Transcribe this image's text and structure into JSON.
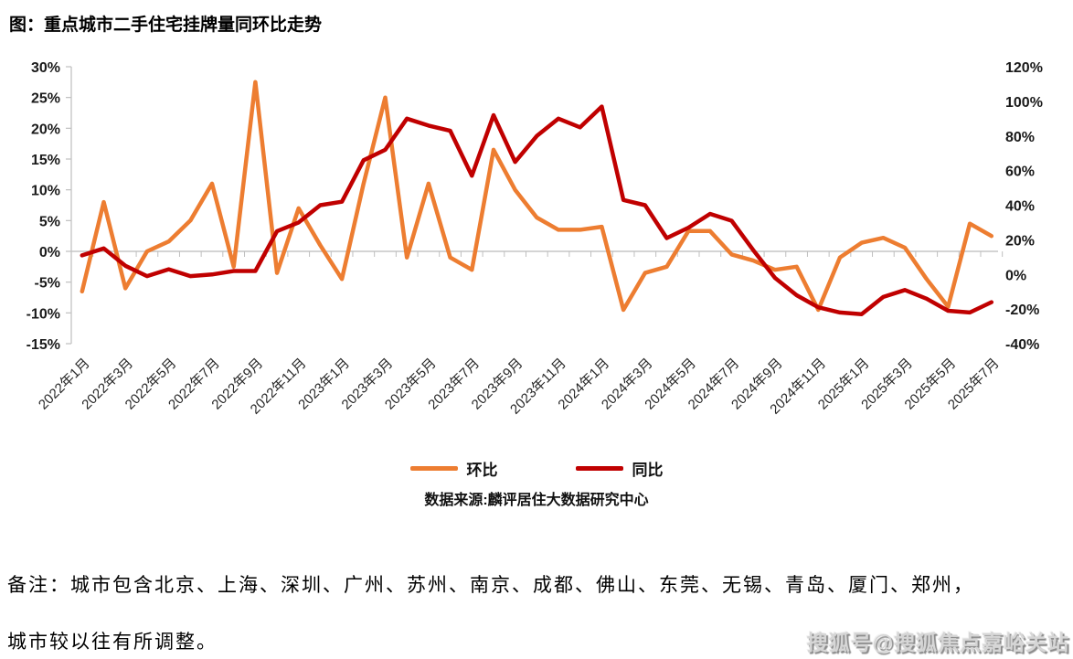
{
  "title": "图：重点城市二手住宅挂牌量同环比走势",
  "chart_data": {
    "type": "line",
    "x": [
      "2022年1月",
      "2022年2月",
      "2022年3月",
      "2022年4月",
      "2022年5月",
      "2022年6月",
      "2022年7月",
      "2022年8月",
      "2022年9月",
      "2022年10月",
      "2022年11月",
      "2022年12月",
      "2023年1月",
      "2023年2月",
      "2023年3月",
      "2023年4月",
      "2023年5月",
      "2023年6月",
      "2023年7月",
      "2023年8月",
      "2023年9月",
      "2023年10月",
      "2023年11月",
      "2023年12月",
      "2024年1月",
      "2024年2月",
      "2024年3月",
      "2024年4月",
      "2024年5月",
      "2024年6月",
      "2024年7月",
      "2024年8月",
      "2024年9月",
      "2024年10月",
      "2024年11月",
      "2024年12月",
      "2025年1月",
      "2025年2月",
      "2025年3月",
      "2025年4月",
      "2025年5月",
      "2025年6月",
      "2025年7月"
    ],
    "x_tick_every": 2,
    "series": [
      {
        "name": "环比",
        "axis": "left",
        "color": "#ED7D31",
        "values": [
          -6.5,
          8,
          -6,
          0,
          1.6,
          5,
          11,
          -2.5,
          27.5,
          -3.5,
          7,
          1,
          -4.5,
          11,
          25,
          -1,
          11,
          -1,
          -3,
          16.5,
          10,
          5.5,
          3.5,
          3.5,
          4,
          -9.5,
          -3.5,
          -2.5,
          3.3,
          3.3,
          -0.5,
          -1.5,
          -3,
          -2.5,
          -9.5,
          -1,
          1.4,
          2.2,
          0.6,
          -4.5,
          -9,
          4.5,
          2.5
        ]
      },
      {
        "name": "同比",
        "axis": "right",
        "color": "#C00000",
        "values": [
          11,
          15,
          5,
          -1,
          3,
          -1,
          0,
          2,
          2,
          25,
          30,
          40,
          42,
          66,
          72,
          90,
          86,
          83,
          57,
          92,
          65,
          80,
          90,
          85,
          97,
          43,
          40,
          21,
          27,
          35,
          31,
          14,
          -2,
          -12,
          -19,
          -22,
          -23,
          -13,
          -9,
          -14,
          -21,
          -22,
          -16
        ]
      }
    ],
    "left_axis": {
      "min": -15,
      "max": 30,
      "step": 5,
      "ticks": [
        "30%",
        "25%",
        "20%",
        "15%",
        "10%",
        "5%",
        "0%",
        "-5%",
        "-10%",
        "-15%"
      ]
    },
    "right_axis": {
      "min": -40,
      "max": 120,
      "step": 20,
      "ticks": [
        "120%",
        "100%",
        "80%",
        "60%",
        "40%",
        "20%",
        "0%",
        "-20%",
        "-40%"
      ]
    },
    "grid": false,
    "legend_position": "bottom"
  },
  "legend": {
    "items": [
      {
        "label": "环比",
        "color": "#ED7D31"
      },
      {
        "label": "同比",
        "color": "#C00000"
      }
    ]
  },
  "source": "数据来源:麟评居住大数据研究中心",
  "notes": [
    "备注：城市包含北京、上海、深圳、广州、苏州、南京、成都、佛山、东莞、无锡、青岛、厦门、郑州，",
    "城市较以往有所调整。"
  ],
  "watermark": "搜狐号@搜狐焦点嘉峪关站"
}
